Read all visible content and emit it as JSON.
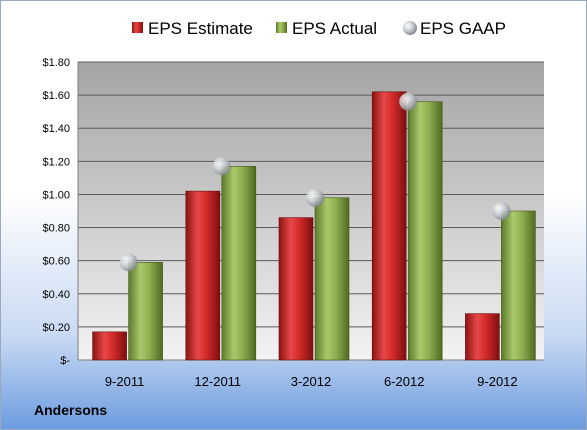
{
  "company": "Andersons",
  "colors": {
    "estimate": "#d42a2a",
    "actual": "#8fb050",
    "gaap": "#bfc3c9"
  },
  "chart_data": {
    "type": "bar",
    "categories": [
      "9-2011",
      "12-2011",
      "3-2012",
      "6-2012",
      "9-2012"
    ],
    "series": [
      {
        "name": "EPS Estimate",
        "values": [
          0.17,
          1.02,
          0.86,
          1.62,
          0.28
        ]
      },
      {
        "name": "EPS Actual",
        "values": [
          0.59,
          1.17,
          0.98,
          1.56,
          0.9
        ]
      },
      {
        "name": "EPS GAAP",
        "type": "scatter",
        "values": [
          0.59,
          1.17,
          0.98,
          1.56,
          0.9
        ]
      }
    ],
    "yticks": [
      "$-",
      "$0.20",
      "$0.40",
      "$0.60",
      "$0.80",
      "$1.00",
      "$1.20",
      "$1.40",
      "$1.60",
      "$1.80"
    ],
    "ylim": [
      0,
      1.8
    ],
    "ystep": 0.2,
    "grid": true,
    "legend": "top"
  }
}
